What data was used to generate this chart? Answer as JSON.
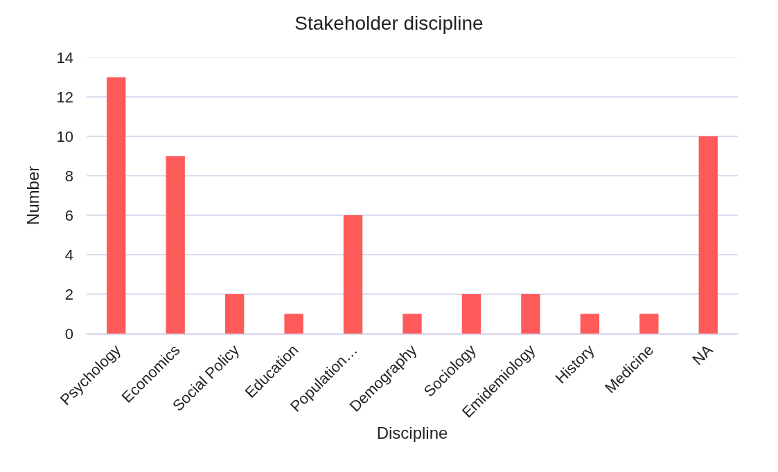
{
  "chart_data": {
    "type": "bar",
    "title": "Stakeholder discipline",
    "xlabel": "Discipline",
    "ylabel": "Number",
    "categories": [
      "Psychology",
      "Economics",
      "Social Policy",
      "Education",
      "Population…",
      "Demography",
      "Sociology",
      "Emidemiology",
      "History",
      "Medicine",
      "NA"
    ],
    "values": [
      13,
      9,
      2,
      1,
      6,
      1,
      2,
      2,
      1,
      1,
      10
    ],
    "color": "#ff5a5a",
    "ylim": [
      0,
      14
    ],
    "yticks": [
      0,
      2,
      4,
      6,
      8,
      10,
      12,
      14
    ],
    "grid": "y"
  }
}
